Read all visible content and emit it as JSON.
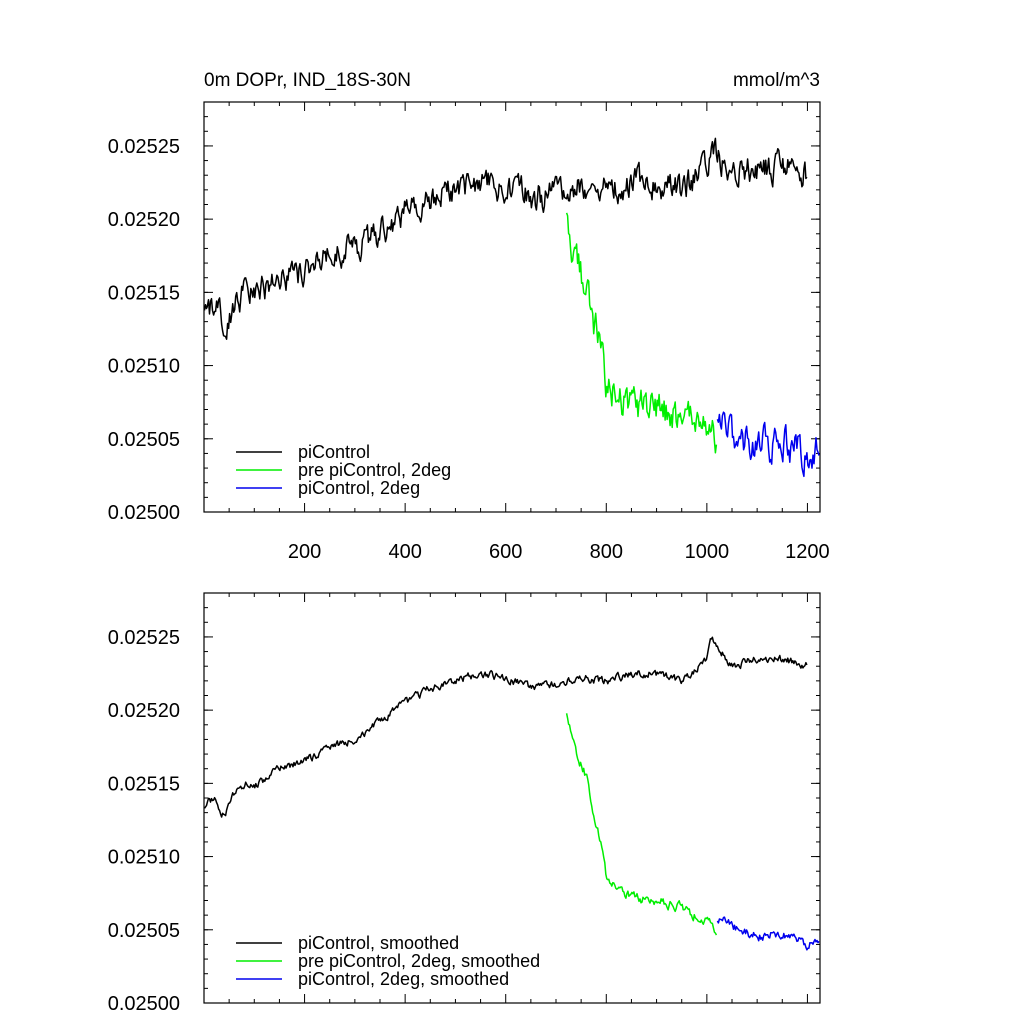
{
  "figure": {
    "title_left": "0m DOPr, IND_18S-30N",
    "title_right": "mmol/m^3"
  },
  "chart_data": [
    {
      "type": "line",
      "panel": "top",
      "xlim": [
        0,
        1225
      ],
      "ylim": [
        0.025,
        0.02528
      ],
      "x_ticks": [
        200,
        400,
        600,
        800,
        1000,
        1200
      ],
      "x_tick_labels": [
        "200",
        "400",
        "600",
        "800",
        "1000",
        "1200"
      ],
      "y_ticks": [
        0.025,
        0.02505,
        0.0251,
        0.02515,
        0.0252,
        0.02525
      ],
      "y_tick_labels": [
        "0.02500",
        "0.02505",
        "0.02510",
        "0.02515",
        "0.02520",
        "0.02525"
      ],
      "legend": {
        "location": "bottom-left",
        "entries": [
          "piControl",
          "pre piControl, 2deg",
          "piControl, 2deg"
        ]
      },
      "series": [
        {
          "name": "piControl",
          "color": "#000000",
          "noise": 1.8e-05,
          "x": [
            1,
            20,
            40,
            60,
            80,
            100,
            150,
            200,
            250,
            300,
            350,
            400,
            450,
            500,
            550,
            600,
            650,
            700,
            750,
            800,
            850,
            900,
            950,
            1000,
            1010,
            1050,
            1100,
            1150,
            1200
          ],
          "y": [
            0.025135,
            0.02514,
            0.025128,
            0.025142,
            0.02515,
            0.025148,
            0.02516,
            0.025165,
            0.025175,
            0.02518,
            0.025192,
            0.025205,
            0.025215,
            0.02522,
            0.025225,
            0.025222,
            0.025215,
            0.025218,
            0.025222,
            0.02522,
            0.025225,
            0.025225,
            0.02522,
            0.025235,
            0.02525,
            0.02523,
            0.025235,
            0.025235,
            0.02523
          ]
        },
        {
          "name": "pre piControl, 2deg",
          "color": "#00ee00",
          "noise": 2.2e-05,
          "x": [
            721,
            740,
            760,
            775,
            790,
            800,
            820,
            850,
            900,
            950,
            1000,
            1020
          ],
          "y": [
            0.0252,
            0.02517,
            0.025155,
            0.02513,
            0.02511,
            0.025085,
            0.02508,
            0.025072,
            0.02507,
            0.025065,
            0.025055,
            0.02505
          ]
        },
        {
          "name": "piControl, 2deg",
          "color": "#0000ee",
          "noise": 2.2e-05,
          "x": [
            1021,
            1060,
            1100,
            1150,
            1200,
            1224
          ],
          "y": [
            0.025058,
            0.02505,
            0.025045,
            0.025048,
            0.02504,
            0.02504
          ]
        }
      ]
    },
    {
      "type": "line",
      "panel": "bottom",
      "xlim": [
        0,
        1225
      ],
      "ylim": [
        0.025,
        0.02528
      ],
      "x_ticks": [
        200,
        400,
        600,
        800,
        1000,
        1200
      ],
      "y_ticks": [
        0.025,
        0.02505,
        0.0251,
        0.02515,
        0.0252,
        0.02525
      ],
      "y_tick_labels": [
        "0.02500",
        "0.02505",
        "0.02510",
        "0.02515",
        "0.02520",
        "0.02525"
      ],
      "legend": {
        "location": "bottom-left",
        "entries": [
          "piControl, smoothed",
          "pre piControl, 2deg, smoothed",
          "piControl, 2deg, smoothed"
        ]
      },
      "series": [
        {
          "name": "piControl, smoothed",
          "color": "#000000",
          "noise": 5e-06,
          "x": [
            1,
            20,
            40,
            60,
            80,
            100,
            150,
            200,
            250,
            300,
            350,
            400,
            450,
            500,
            550,
            600,
            650,
            700,
            750,
            800,
            850,
            900,
            950,
            1000,
            1010,
            1050,
            1100,
            1150,
            1200
          ],
          "y": [
            0.025135,
            0.02514,
            0.025128,
            0.025142,
            0.02515,
            0.025148,
            0.02516,
            0.025165,
            0.025175,
            0.02518,
            0.025192,
            0.025205,
            0.025215,
            0.02522,
            0.025225,
            0.025222,
            0.025215,
            0.025218,
            0.025222,
            0.02522,
            0.025225,
            0.025225,
            0.02522,
            0.025235,
            0.02525,
            0.02523,
            0.025235,
            0.025235,
            0.02523
          ]
        },
        {
          "name": "pre piControl, 2deg, smoothed",
          "color": "#00ee00",
          "noise": 6e-06,
          "x": [
            721,
            740,
            760,
            775,
            790,
            800,
            820,
            850,
            900,
            950,
            1000,
            1020
          ],
          "y": [
            0.0252,
            0.02517,
            0.025155,
            0.02513,
            0.02511,
            0.025085,
            0.02508,
            0.025072,
            0.02507,
            0.025065,
            0.025055,
            0.02505
          ]
        },
        {
          "name": "piControl, 2deg, smoothed",
          "color": "#0000ee",
          "noise": 6e-06,
          "x": [
            1021,
            1060,
            1100,
            1150,
            1200,
            1224
          ],
          "y": [
            0.025058,
            0.02505,
            0.025045,
            0.025048,
            0.02504,
            0.02504
          ]
        }
      ]
    }
  ]
}
